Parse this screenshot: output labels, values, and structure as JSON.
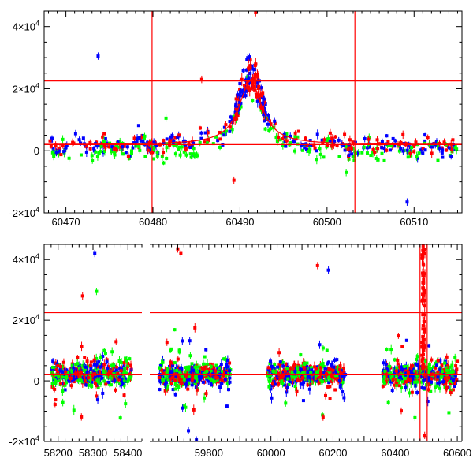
{
  "chart_data": [
    {
      "type": "scatter",
      "panel": "top",
      "xlim": [
        60467.5,
        60515.5
      ],
      "ylim": [
        -20000,
        45000
      ],
      "x_ticks": [
        60470,
        60480,
        60490,
        60500,
        60510
      ],
      "y_ticks": [
        {
          "value": -20000,
          "base": "-2×10",
          "exp": "4"
        },
        {
          "value": 0,
          "base": "0",
          "exp": ""
        },
        {
          "value": 20000,
          "base": "2×10",
          "exp": "4"
        },
        {
          "value": 40000,
          "base": "4×10",
          "exp": "4"
        }
      ],
      "hlines": [
        22500,
        2000
      ],
      "vlines": [
        60479.9,
        60503.2
      ],
      "series_colors": {
        "red": "#ff0000",
        "blue": "#0000ff",
        "green": "#00ff00"
      },
      "model_curve": {
        "color": "#ff0000",
        "peak_x": 60491.2,
        "peak_y": 22500,
        "baseline": 2000,
        "half_width": 1.6
      },
      "notable_points": [
        {
          "color": "blue",
          "x": 60473.7,
          "y": 30500
        },
        {
          "color": "red",
          "x": 60491.8,
          "y": 44500
        },
        {
          "color": "red",
          "x": 60489.3,
          "y": -9500
        },
        {
          "color": "blue",
          "x": 60509.2,
          "y": -16500
        },
        {
          "color": "green",
          "x": 60502.2,
          "y": -7000
        },
        {
          "color": "green",
          "x": 60481.5,
          "y": 10500
        },
        {
          "color": "red",
          "x": 60485.6,
          "y": 23000
        }
      ]
    },
    {
      "type": "scatter",
      "panel": "bottom",
      "axis_break": true,
      "x_segments": [
        {
          "xlim": [
            58160,
            58440
          ],
          "ticks": [
            58200,
            58300,
            58400
          ]
        },
        {
          "xlim": [
            59610,
            60615
          ],
          "ticks": [
            59800,
            60000,
            60200,
            60400,
            60600
          ]
        }
      ],
      "ylim": [
        -20000,
        45000
      ],
      "y_ticks": [
        {
          "value": -20000,
          "base": "-2×10",
          "exp": "4"
        },
        {
          "value": 0,
          "base": "0",
          "exp": ""
        },
        {
          "value": 20000,
          "base": "2×10",
          "exp": "4"
        },
        {
          "value": 40000,
          "base": "4×10",
          "exp": "4"
        }
      ],
      "hlines": [
        22500,
        2000
      ],
      "vlines": [
        60480,
        60503
      ],
      "seasons": [
        [
          58180,
          58410
        ],
        [
          59640,
          59870
        ],
        [
          59990,
          60240
        ],
        [
          60360,
          60600
        ]
      ],
      "series_colors": {
        "red": "#ff0000",
        "blue": "#0000ff",
        "green": "#00ff00"
      },
      "notable_points": [
        {
          "color": "blue",
          "x": 58305,
          "y": 42000
        },
        {
          "color": "green",
          "x": 58310,
          "y": 29500
        },
        {
          "color": "red",
          "x": 58270,
          "y": 28000
        },
        {
          "color": "red",
          "x": 59700,
          "y": 43500
        },
        {
          "color": "red",
          "x": 59710,
          "y": 42000
        },
        {
          "color": "red",
          "x": 60150,
          "y": 38000
        },
        {
          "color": "blue",
          "x": 60185,
          "y": 36500
        },
        {
          "color": "red",
          "x": 60490,
          "y": 44500
        },
        {
          "color": "red",
          "x": 60495,
          "y": -18000
        },
        {
          "color": "blue",
          "x": 59760,
          "y": -19500
        }
      ]
    }
  ]
}
